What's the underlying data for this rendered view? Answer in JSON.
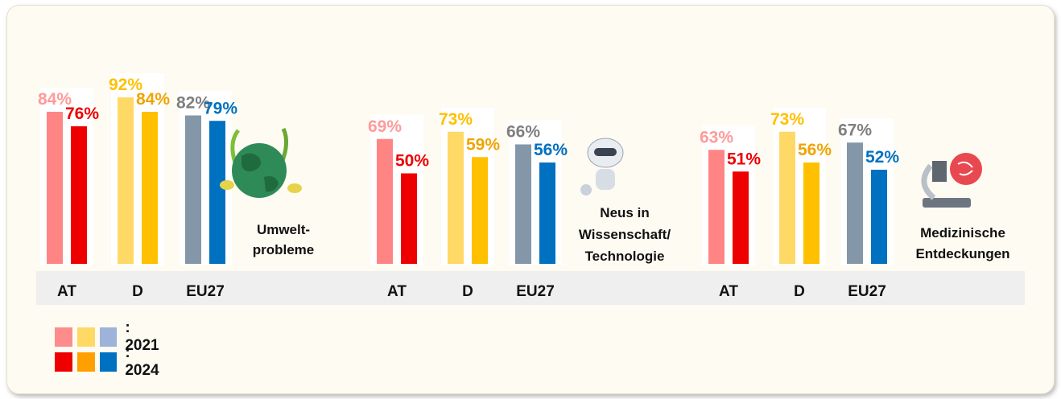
{
  "chart_data": {
    "type": "bar",
    "groups": [
      {
        "topic": [
          "Umwelt-",
          "probleme"
        ],
        "icon": "globe-plants-icon",
        "categories": [
          "AT",
          "D",
          "EU27"
        ],
        "values_2021": [
          84,
          92,
          82
        ],
        "values_2024": [
          76,
          84,
          79
        ],
        "labels_2021": [
          "84%",
          "92%",
          "82%"
        ],
        "labels_2024": [
          "76%",
          "84%",
          "79%"
        ]
      },
      {
        "topic": [
          "Neus in",
          "Wissenschaft/",
          "Technologie"
        ],
        "icon": "robot-icon",
        "categories": [
          "AT",
          "D",
          "EU27"
        ],
        "values_2021": [
          69,
          73,
          66
        ],
        "values_2024": [
          50,
          59,
          56
        ],
        "labels_2021": [
          "69%",
          "73%",
          "66%"
        ],
        "labels_2024": [
          "50%",
          "59%",
          "56%"
        ]
      },
      {
        "topic": [
          "Medizinische",
          "Entdeckungen"
        ],
        "icon": "microscope-icon",
        "categories": [
          "AT",
          "D",
          "EU27"
        ],
        "values_2021": [
          63,
          73,
          67
        ],
        "values_2024": [
          51,
          56,
          52
        ],
        "labels_2021": [
          "63%",
          "73%",
          "67%"
        ],
        "labels_2024": [
          "51%",
          "56%",
          "52%"
        ]
      }
    ],
    "colors_2021": [
      "#ff8585",
      "#ffd966",
      "#8497a8"
    ],
    "colors_2024": [
      "#ee0000",
      "#ffc000",
      "#0070c0"
    ],
    "label_colors_2021": [
      "#ff9a9a",
      "#ffc000",
      "#7f7f7f"
    ],
    "label_colors_2024": [
      "#ee0000",
      "#f0a400",
      "#0070c0"
    ],
    "legend": {
      "label_2021": ": 2021",
      "label_2024": ": 2024",
      "swatches_2021": [
        "#ff8c8c",
        "#ffd966",
        "#9db3d9"
      ],
      "swatches_2024": [
        "#ee0000",
        "#ffa000",
        "#0070c0"
      ]
    }
  }
}
